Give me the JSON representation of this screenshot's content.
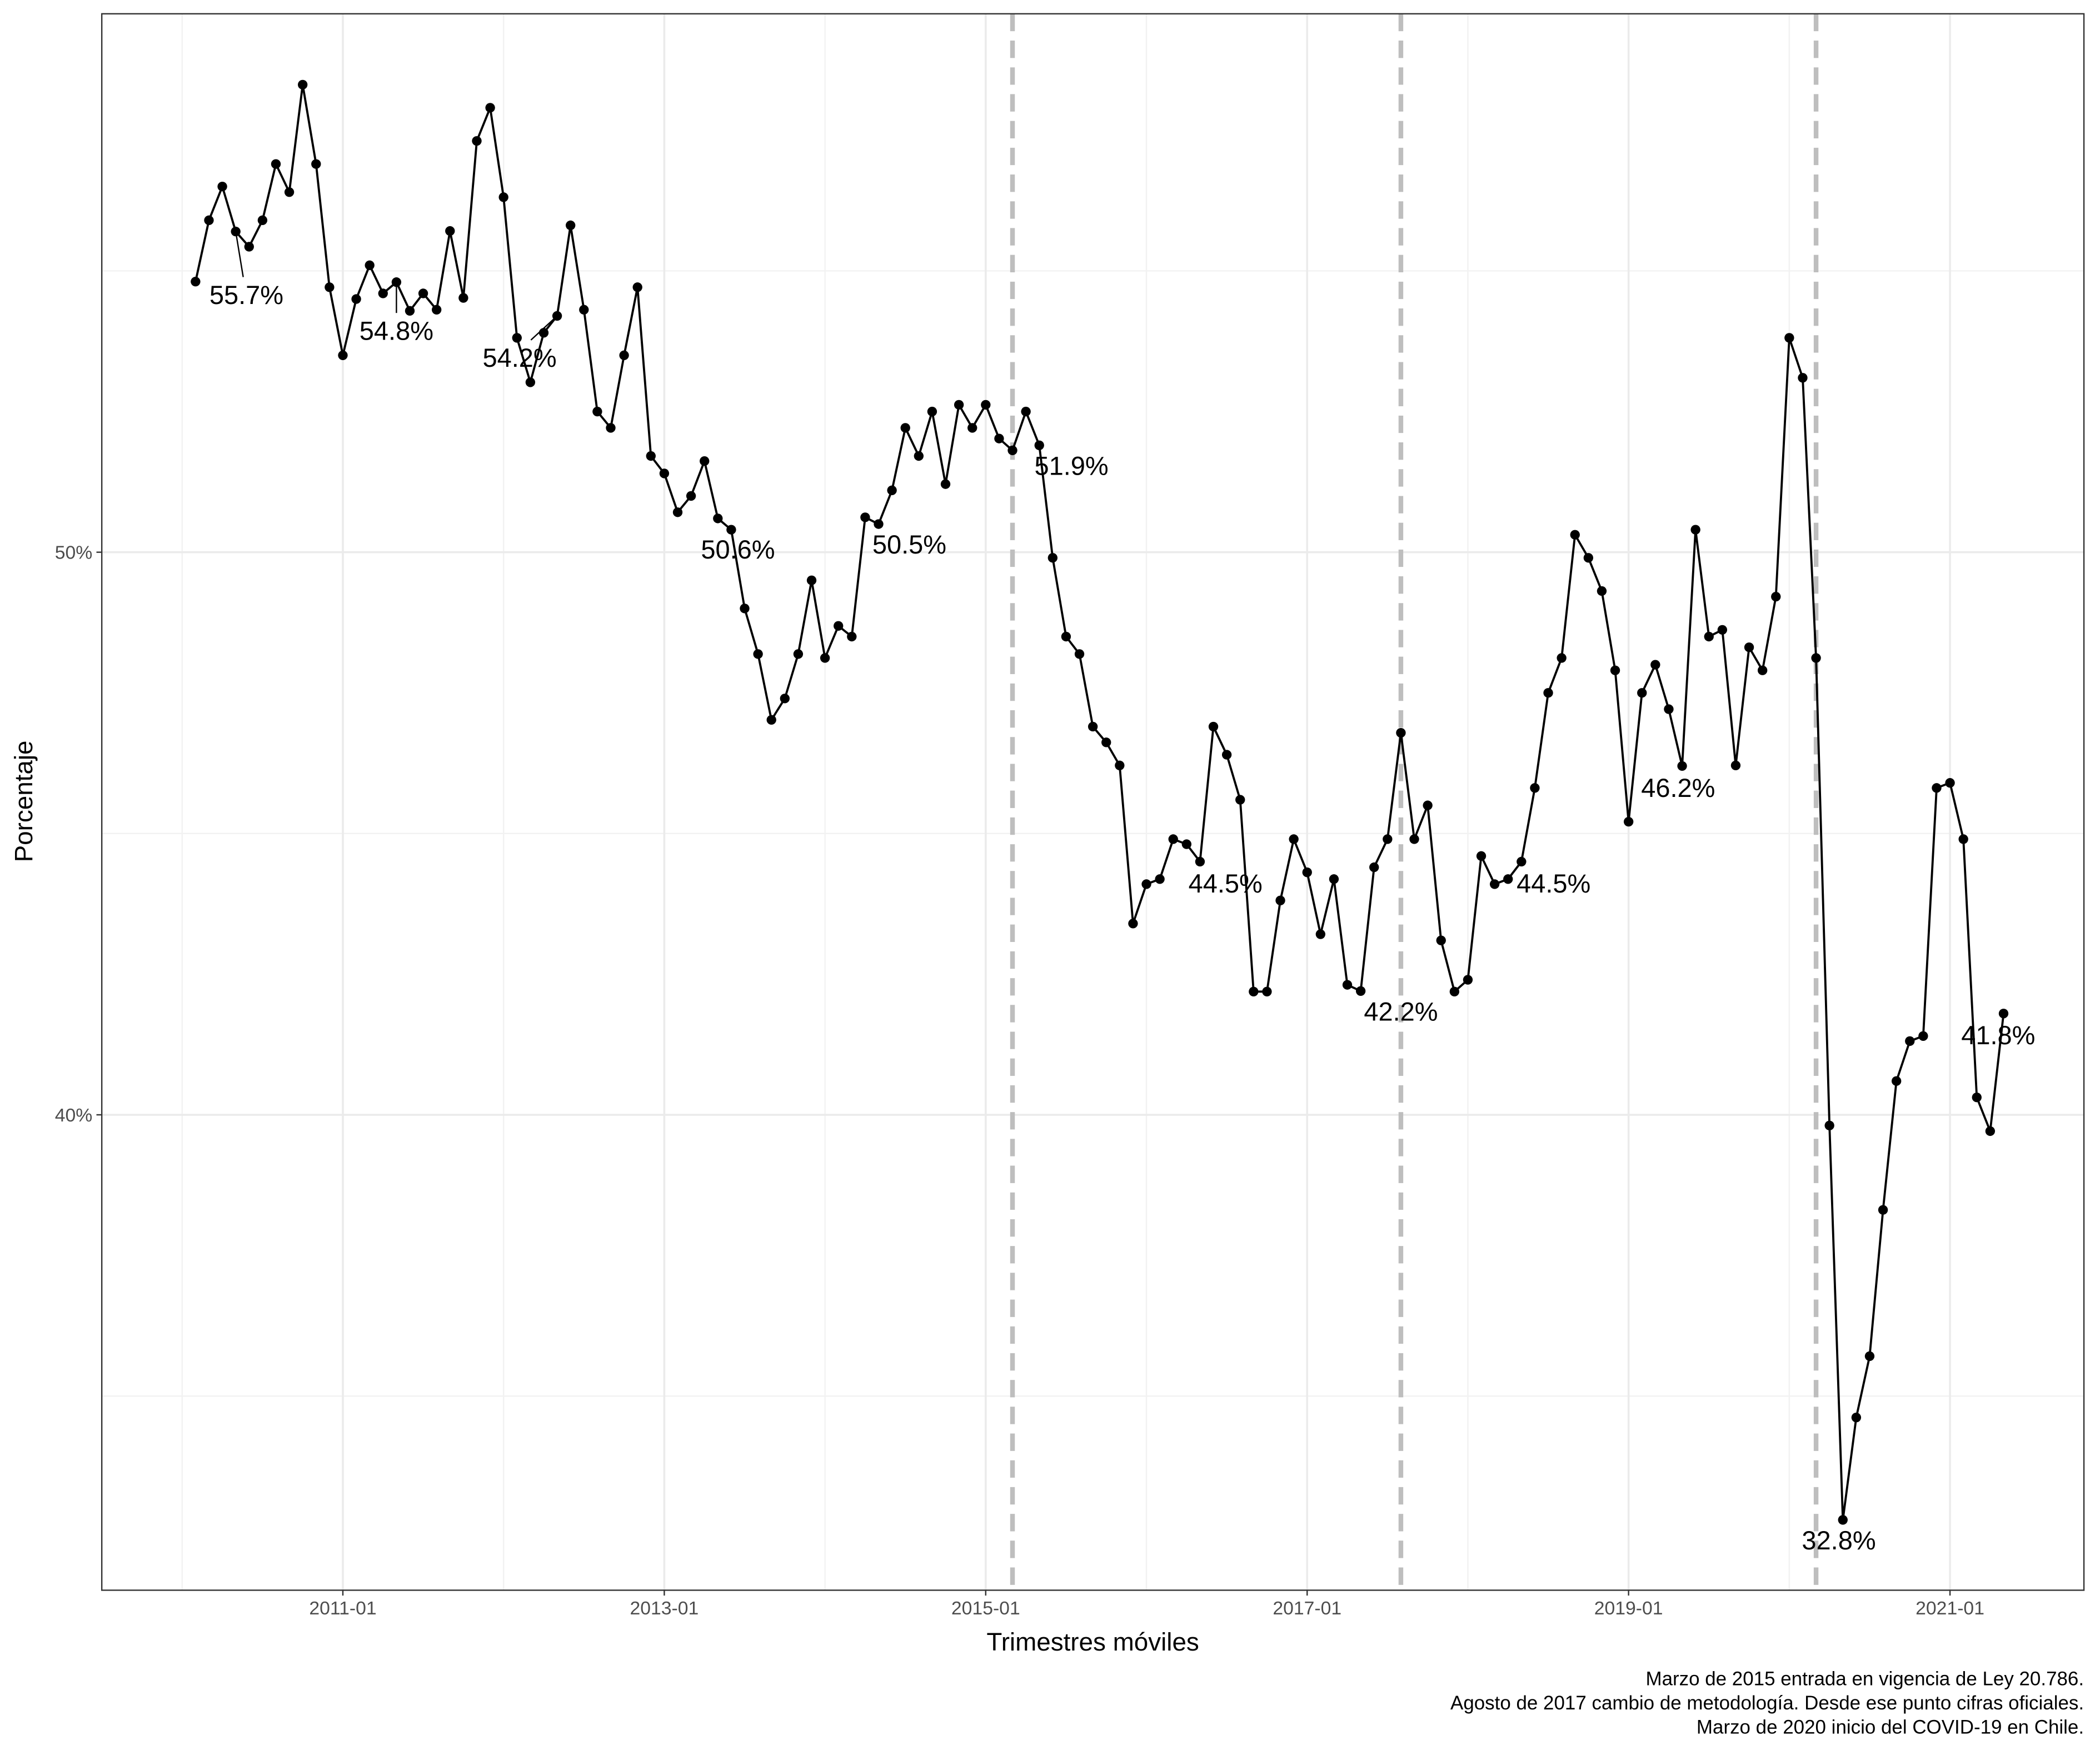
{
  "chart_data": {
    "type": "line",
    "xlabel": "Trimestres móviles",
    "ylabel": "Porcentaje",
    "caption": [
      "Marzo de 2015 entrada en vigencia de Ley 20.786.",
      "Agosto de 2017 cambio de metodología. Desde ese punto cifras oficiales.",
      "Marzo de 2020 inicio del COVID-19 en Chile."
    ],
    "x": [
      "2010-02",
      "2010-03",
      "2010-04",
      "2010-05",
      "2010-06",
      "2010-07",
      "2010-08",
      "2010-09",
      "2010-10",
      "2010-11",
      "2010-12",
      "2011-01",
      "2011-02",
      "2011-03",
      "2011-04",
      "2011-05",
      "2011-06",
      "2011-07",
      "2011-08",
      "2011-09",
      "2011-10",
      "2011-11",
      "2011-12",
      "2012-01",
      "2012-02",
      "2012-03",
      "2012-04",
      "2012-05",
      "2012-06",
      "2012-07",
      "2012-08",
      "2012-09",
      "2012-10",
      "2012-11",
      "2012-12",
      "2013-01",
      "2013-02",
      "2013-03",
      "2013-04",
      "2013-05",
      "2013-06",
      "2013-07",
      "2013-08",
      "2013-09",
      "2013-10",
      "2013-11",
      "2013-12",
      "2014-01",
      "2014-02",
      "2014-03",
      "2014-04",
      "2014-05",
      "2014-06",
      "2014-07",
      "2014-08",
      "2014-09",
      "2014-10",
      "2014-11",
      "2014-12",
      "2015-01",
      "2015-02",
      "2015-03",
      "2015-04",
      "2015-05",
      "2015-06",
      "2015-07",
      "2015-08",
      "2015-09",
      "2015-10",
      "2015-11",
      "2015-12",
      "2016-01",
      "2016-02",
      "2016-03",
      "2016-04",
      "2016-05",
      "2016-06",
      "2016-07",
      "2016-08",
      "2016-09",
      "2016-10",
      "2016-11",
      "2016-12",
      "2017-01",
      "2017-02",
      "2017-03",
      "2017-04",
      "2017-05",
      "2017-06",
      "2017-07",
      "2017-08",
      "2017-09",
      "2017-10",
      "2017-11",
      "2017-12",
      "2018-01",
      "2018-02",
      "2018-03",
      "2018-04",
      "2018-05",
      "2018-06",
      "2018-07",
      "2018-08",
      "2018-09",
      "2018-10",
      "2018-11",
      "2018-12",
      "2019-01",
      "2019-02",
      "2019-03",
      "2019-04",
      "2019-05",
      "2019-06",
      "2019-07",
      "2019-08",
      "2019-09",
      "2019-10",
      "2019-11",
      "2019-12",
      "2020-01",
      "2020-02",
      "2020-03",
      "2020-04",
      "2020-05",
      "2020-06",
      "2020-07",
      "2020-08",
      "2020-09",
      "2020-10",
      "2020-11",
      "2020-12",
      "2021-01",
      "2021-02",
      "2021-03",
      "2021-04",
      "2021-05"
    ],
    "series": [
      {
        "color": "#000000",
        "values": [
          54.81,
          55.9,
          56.5,
          55.7,
          55.43,
          55.9,
          56.9,
          56.4,
          58.31,
          56.9,
          54.71,
          53.5,
          54.5,
          55.1,
          54.6,
          54.8,
          54.29,
          54.6,
          54.31,
          55.71,
          54.52,
          57.31,
          57.9,
          56.31,
          53.81,
          53.02,
          53.9,
          54.2,
          55.81,
          54.31,
          52.5,
          52.21,
          53.5,
          54.71,
          51.71,
          51.4,
          50.71,
          51.0,
          51.62,
          50.6,
          50.4,
          49.0,
          48.19,
          47.02,
          47.4,
          48.19,
          49.5,
          48.12,
          48.69,
          48.5,
          50.62,
          50.5,
          51.1,
          52.21,
          51.71,
          52.5,
          51.21,
          52.62,
          52.21,
          52.62,
          52.02,
          51.81,
          52.5,
          51.9,
          49.9,
          48.5,
          48.19,
          46.9,
          46.62,
          46.21,
          43.4,
          44.1,
          44.19,
          44.9,
          44.81,
          44.5,
          46.9,
          46.4,
          45.6,
          42.19,
          42.19,
          43.81,
          44.9,
          44.31,
          43.21,
          44.19,
          42.31,
          42.2,
          44.4,
          44.9,
          46.79,
          44.9,
          45.5,
          43.1,
          42.19,
          42.4,
          44.6,
          44.1,
          44.19,
          44.5,
          45.81,
          47.5,
          48.12,
          50.31,
          49.9,
          49.31,
          47.9,
          45.21,
          47.5,
          48.0,
          47.21,
          46.2,
          50.4,
          48.5,
          48.62,
          46.21,
          48.31,
          47.9,
          49.21,
          53.81,
          53.1,
          48.12,
          39.81,
          32.8,
          34.62,
          35.71,
          38.31,
          40.6,
          41.31,
          41.4,
          45.81,
          45.9,
          44.9,
          40.31,
          39.71,
          41.8
        ],
        "value_labels": [
          null,
          null,
          null,
          "55.7%",
          null,
          null,
          null,
          null,
          null,
          null,
          null,
          null,
          null,
          null,
          null,
          "54.8%",
          null,
          null,
          null,
          null,
          null,
          null,
          null,
          null,
          null,
          null,
          null,
          "54.2%",
          null,
          null,
          null,
          null,
          null,
          null,
          null,
          null,
          null,
          null,
          null,
          "50.6%",
          null,
          null,
          null,
          null,
          null,
          null,
          null,
          null,
          null,
          null,
          null,
          "50.5%",
          null,
          null,
          null,
          null,
          null,
          null,
          null,
          null,
          null,
          null,
          null,
          "51.9%",
          null,
          null,
          null,
          null,
          null,
          null,
          null,
          null,
          null,
          null,
          null,
          "44.5%",
          null,
          null,
          null,
          null,
          null,
          null,
          null,
          null,
          null,
          null,
          null,
          "42.2%",
          null,
          null,
          null,
          null,
          null,
          null,
          null,
          null,
          null,
          null,
          null,
          "44.5%",
          null,
          null,
          null,
          null,
          null,
          null,
          null,
          null,
          null,
          null,
          null,
          "46.2%",
          null,
          null,
          null,
          null,
          null,
          null,
          null,
          null,
          null,
          null,
          null,
          "32.8%",
          null,
          null,
          null,
          null,
          null,
          null,
          null,
          null,
          null,
          null,
          null,
          "41.8%"
        ]
      }
    ],
    "vlines": [
      "2015-03",
      "2017-08",
      "2020-03"
    ],
    "vline_color": "#bebebe",
    "xlim": [
      "2009-07",
      "2021-11"
    ],
    "xticks": [
      "2011-01",
      "2013-01",
      "2015-01",
      "2017-01",
      "2019-01",
      "2021-01"
    ],
    "minor_xticks": [
      "2010-01",
      "2012-01",
      "2014-01",
      "2016-01",
      "2018-01",
      "2020-01"
    ],
    "ylim": [
      31.55,
      59.57
    ],
    "yticks": [
      {
        "value": 40,
        "label": "40%"
      },
      {
        "value": 50,
        "label": "50%"
      }
    ],
    "minor_yticks": [
      35,
      45,
      55
    ],
    "grid": true
  }
}
